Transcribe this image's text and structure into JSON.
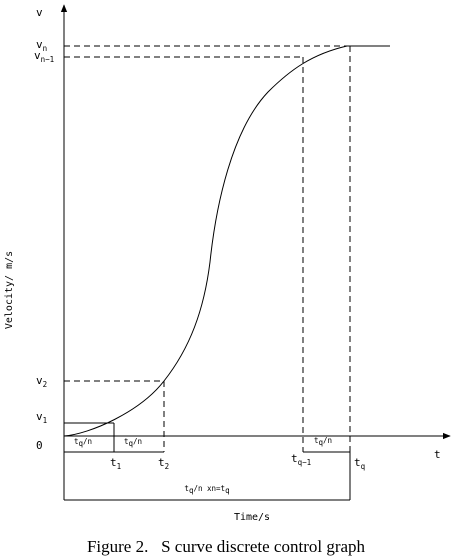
{
  "axes": {
    "y_symbol": "v",
    "x_symbol": "t",
    "origin": "0",
    "y_title": "Velocity/ m/s",
    "x_title": "Time/s"
  },
  "velocity_labels": {
    "vn": {
      "base": "v",
      "sub": "n"
    },
    "vn1": {
      "base": "v",
      "sub": "n−1"
    },
    "v2": {
      "base": "v",
      "sub": "2"
    },
    "v1": {
      "base": "v",
      "sub": "1"
    }
  },
  "time_labels": {
    "t1": {
      "base": "t",
      "sub": "1"
    },
    "t2": {
      "base": "t",
      "sub": "2"
    },
    "tq1": {
      "base": "t",
      "sub": "q−1"
    },
    "tq": {
      "base": "t",
      "sub": "q"
    }
  },
  "intervals": {
    "box1": {
      "t": "t",
      "sub": "q",
      "tail": "/n"
    },
    "box2": {
      "t": "t",
      "sub": "q",
      "tail": "/n"
    },
    "box3": {
      "t": "t",
      "sub": "q",
      "tail": "/n"
    }
  },
  "total": {
    "t": "t",
    "sub": "q",
    "middle": "/n xn=t",
    "sub2": "q"
  },
  "caption": "Figure 2.   S curve discrete control graph"
}
